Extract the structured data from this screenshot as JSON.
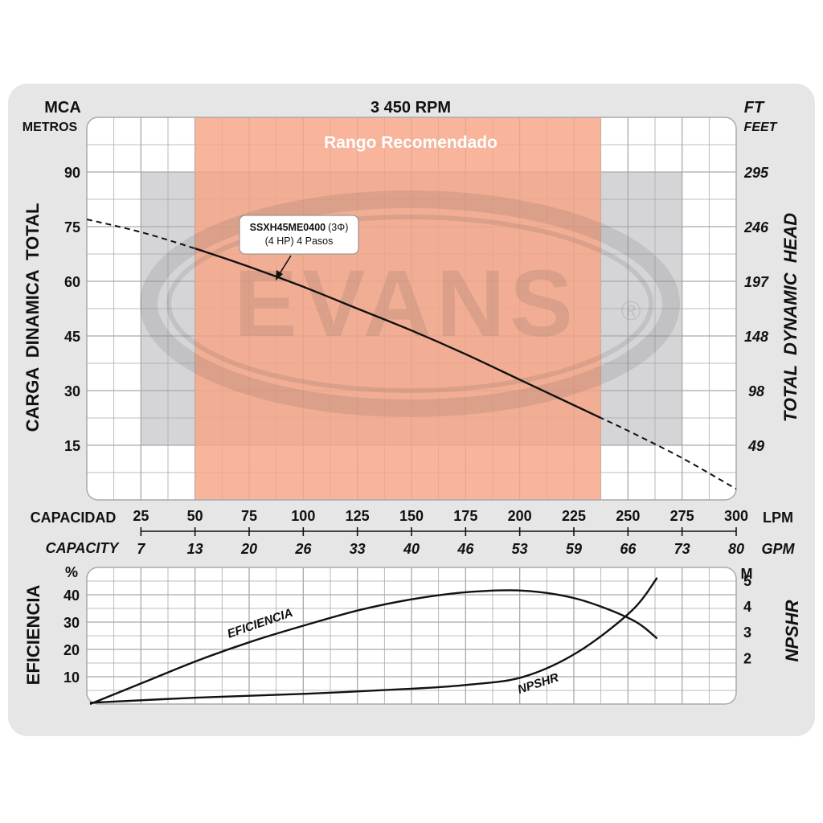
{
  "colors": {
    "panel_bg": "#e6e6e7",
    "plot_bg": "#ffffff",
    "grid_line": "#a9a9ab",
    "gray_region": "#d5d5d7",
    "recommended_fill": "#f6a585",
    "recommended_text": "#ffffff",
    "curve": "#111111",
    "text": "#111111"
  },
  "chart_data": [
    {
      "type": "line",
      "title": "3 450 RPM",
      "left_axis": {
        "unit_top": "MCA",
        "unit_bottom": "METROS",
        "title": "CARGA  DINAMICA  TOTAL",
        "ticks": [
          15,
          30,
          45,
          60,
          75,
          90
        ],
        "ylim": [
          0,
          105
        ]
      },
      "right_axis": {
        "unit_top": "FT",
        "unit_bottom": "FEET",
        "title": "TOTAL  DYNAMIC  HEAD",
        "ticks": [
          "49",
          "98",
          "148",
          "197",
          "246",
          "295"
        ]
      },
      "x_axis": {
        "label_lpm_left": "CAPACIDAD",
        "label_lpm_right": "LPM",
        "lpm_ticks": [
          25,
          50,
          75,
          100,
          125,
          150,
          175,
          200,
          225,
          250,
          275,
          300
        ],
        "label_gpm_left": "CAPACITY",
        "label_gpm_right": "GPM",
        "gpm_ticks": [
          "7",
          "13",
          "20",
          "26",
          "33",
          "40",
          "46",
          "53",
          "59",
          "66",
          "73",
          "80"
        ],
        "xlim": [
          0,
          300
        ]
      },
      "recommended_range": {
        "label": "Rango Recomendado",
        "x": [
          50,
          237.5
        ]
      },
      "gray_region": {
        "x": [
          25,
          275
        ],
        "y_top": 90,
        "y_bottom": 15
      },
      "annotation": {
        "model": "SSXH45ME0400",
        "phase": "(3Φ)",
        "line2": "(4 HP) 4 Pasos",
        "points_to": [
          86,
          61
        ]
      },
      "watermark": "EVANS",
      "series": [
        {
          "name": "SSXH45ME0400",
          "x": [
            0,
            25,
            50,
            75,
            100,
            125,
            150,
            175,
            200,
            225,
            237.5,
            250,
            275,
            300
          ],
          "y": [
            77,
            73.5,
            69,
            64,
            58.5,
            52.5,
            46.5,
            40,
            33,
            26,
            22.5,
            19,
            11.5,
            3
          ]
        }
      ],
      "solid_range": [
        50,
        237.5
      ]
    },
    {
      "type": "line",
      "left_axis": {
        "unit": "%",
        "title": "EFICIENCIA",
        "ticks": [
          10,
          20,
          30,
          40
        ],
        "ylim": [
          0,
          50
        ]
      },
      "right_axis": {
        "unit": "M",
        "title": "NPSHR",
        "ticks": [
          2,
          3,
          4,
          5
        ],
        "ylim": [
          0.2,
          5.5
        ]
      },
      "series": [
        {
          "name": "EFICIENCIA",
          "axis": "left",
          "x": [
            0,
            25,
            50,
            75,
            100,
            125,
            150,
            175,
            200,
            225,
            250,
            262
          ],
          "y": [
            0,
            8,
            16,
            23,
            29,
            34.5,
            38.5,
            41,
            41.5,
            38.5,
            31,
            24
          ]
        },
        {
          "name": "NPSHR",
          "axis": "right",
          "x": [
            0,
            50,
            100,
            150,
            175,
            200,
            225,
            250,
            262
          ],
          "y": [
            0.25,
            0.45,
            0.6,
            0.8,
            0.95,
            1.25,
            2.2,
            3.8,
            5.1
          ]
        }
      ]
    }
  ]
}
